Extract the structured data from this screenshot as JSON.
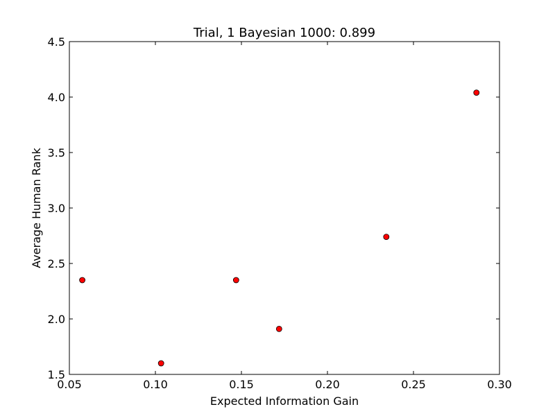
{
  "chart_data": {
    "type": "scatter",
    "title": "Trial, 1 Bayesian 1000: 0.899",
    "xlabel": "Expected Information Gain",
    "ylabel": "Average Human Rank",
    "xlim": [
      0.05,
      0.3
    ],
    "ylim": [
      1.5,
      4.5
    ],
    "xticks": [
      "0.05",
      "0.10",
      "0.15",
      "0.20",
      "0.25",
      "0.30"
    ],
    "yticks": [
      "1.5",
      "2.0",
      "2.5",
      "3.0",
      "3.5",
      "4.0",
      "4.5"
    ],
    "grid": false,
    "marker_color": "#ff0000",
    "series": [
      {
        "x": [
          0.0575,
          0.1033,
          0.1469,
          0.1719,
          0.2342,
          0.2866
        ],
        "y": [
          2.35,
          1.6,
          2.35,
          1.91,
          2.74,
          4.04
        ]
      }
    ]
  }
}
